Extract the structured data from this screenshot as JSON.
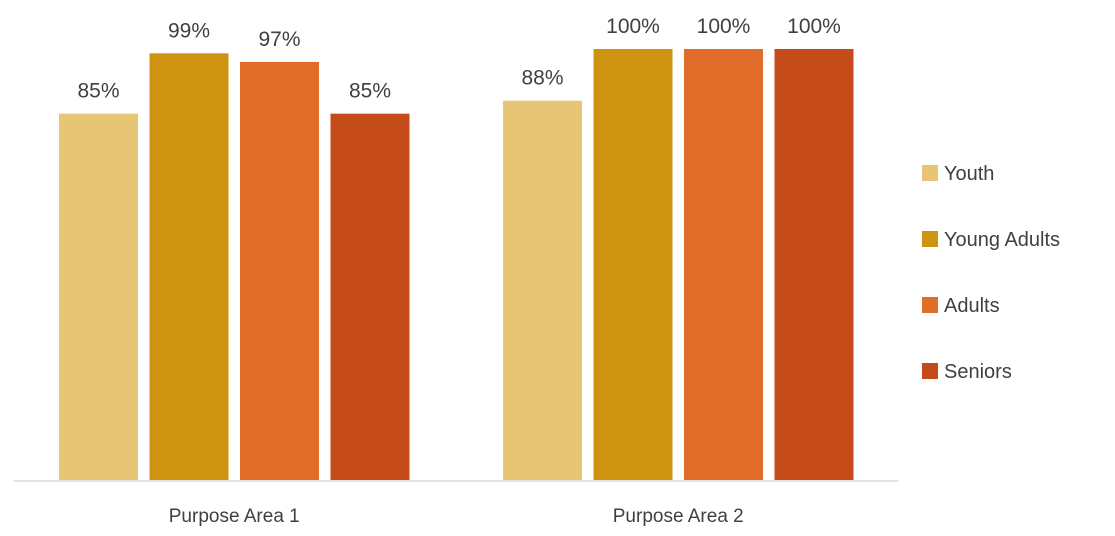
{
  "chart_data": {
    "type": "bar",
    "categories": [
      "Purpose Area 1",
      "Purpose Area 2"
    ],
    "series": [
      {
        "name": "Youth",
        "color": "#E6C674",
        "values": [
          85,
          88
        ],
        "labels": [
          "85%",
          "88%"
        ]
      },
      {
        "name": "Young Adults",
        "color": "#CF9312",
        "values": [
          99,
          100
        ],
        "labels": [
          "99%",
          "100%"
        ]
      },
      {
        "name": "Adults",
        "color": "#E06C29",
        "values": [
          97,
          100
        ],
        "labels": [
          "97%",
          "100%"
        ]
      },
      {
        "name": "Seniors",
        "color": "#C64B1B",
        "values": [
          85,
          100
        ],
        "labels": [
          "85%",
          "100%"
        ]
      }
    ],
    "ylim": [
      0,
      100
    ],
    "value_suffix": "%",
    "grid": false,
    "legend_position": "right",
    "data_labels": true
  }
}
